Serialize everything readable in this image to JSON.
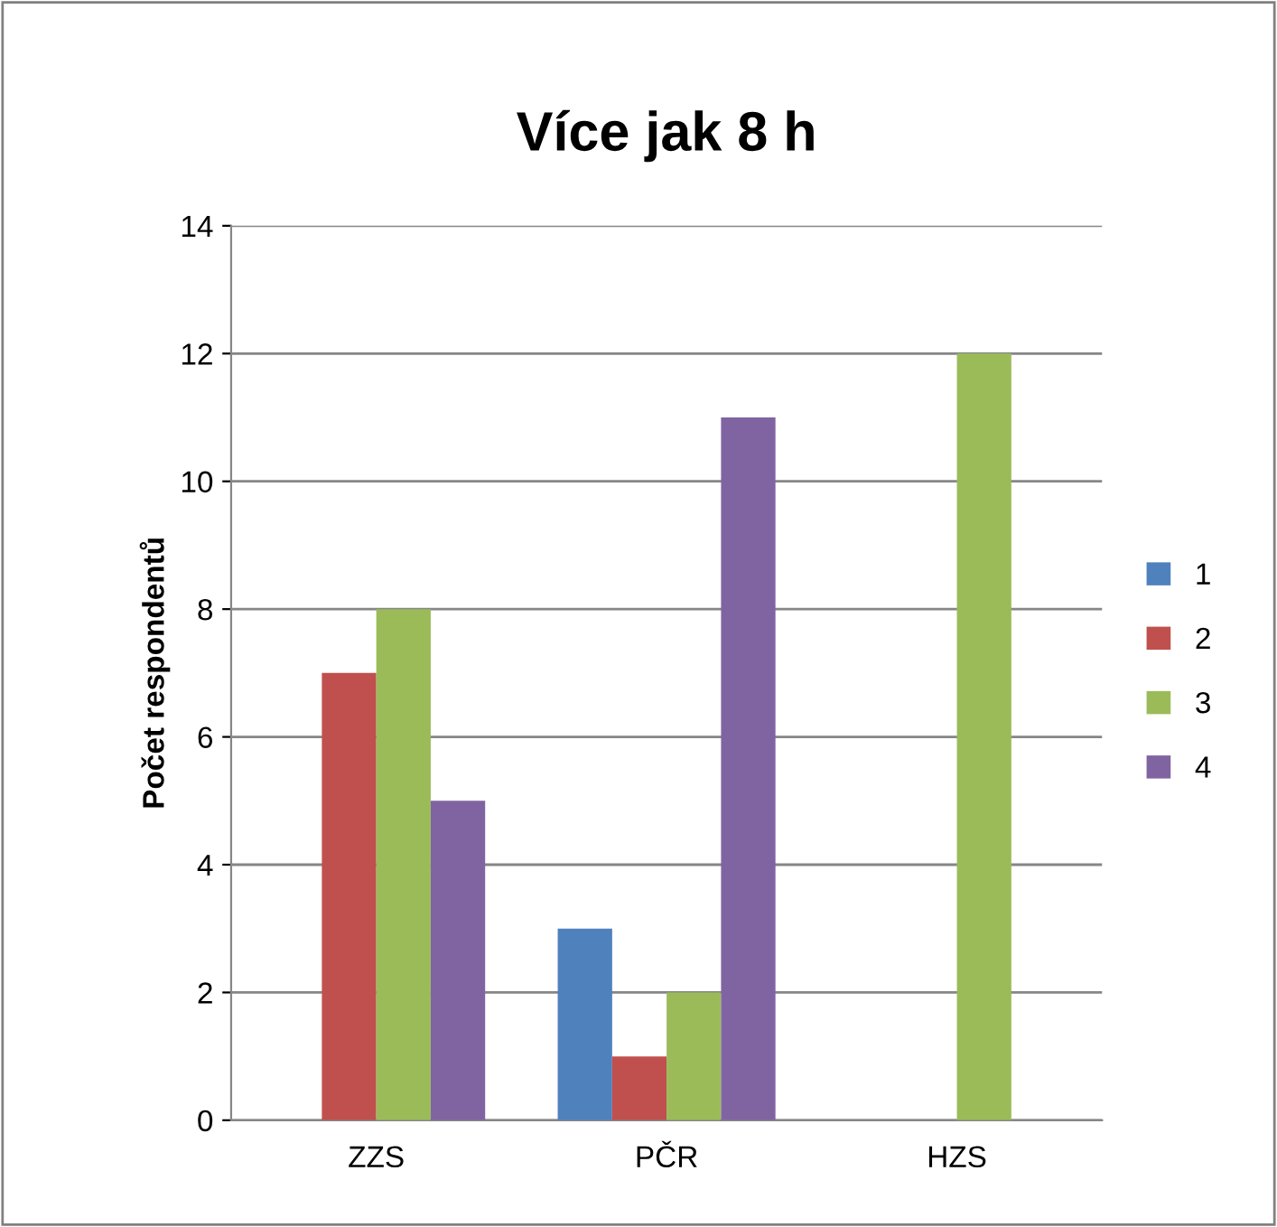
{
  "chart_data": {
    "type": "bar",
    "title": "Více jak 8 h",
    "ylabel": "Počet respondentů",
    "categories": [
      "ZZS",
      "PČR",
      "HZS"
    ],
    "series": [
      {
        "name": "1",
        "color": "#4f81bd",
        "values": [
          0,
          3,
          0
        ]
      },
      {
        "name": "2",
        "color": "#c0504d",
        "values": [
          7,
          1,
          0
        ]
      },
      {
        "name": "3",
        "color": "#9bbb59",
        "values": [
          8,
          2,
          12
        ]
      },
      {
        "name": "4",
        "color": "#8064a2",
        "values": [
          5,
          11,
          0
        ]
      }
    ],
    "ylim": [
      0,
      14
    ],
    "yticks": [
      0,
      2,
      4,
      6,
      8,
      10,
      12,
      14
    ],
    "grid": "y",
    "legend": "right"
  }
}
